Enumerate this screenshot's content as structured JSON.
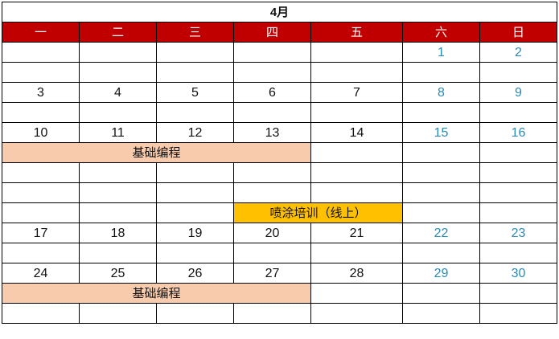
{
  "title": "4月",
  "weekdays": [
    "一",
    "二",
    "三",
    "四",
    "五",
    "六",
    "日"
  ],
  "colors": {
    "header": "#c00000",
    "weekend_text": "#2a8bb5",
    "event_basic": "#f8cbad",
    "event_spray": "#ffc000"
  },
  "rows": [
    {
      "cells": [
        "",
        "",
        "",
        "",
        "",
        "1",
        "2"
      ]
    },
    {
      "cells": [
        "",
        "",
        "",
        "",
        "",
        "",
        ""
      ]
    },
    {
      "cells": [
        "3",
        "4",
        "5",
        "6",
        "7",
        "8",
        "9"
      ]
    },
    {
      "cells": [
        "",
        "",
        "",
        "",
        "",
        "",
        ""
      ]
    },
    {
      "cells": [
        "10",
        "11",
        "12",
        "13",
        "14",
        "15",
        "16"
      ]
    },
    {
      "event": {
        "label": "基础编程",
        "start": 0,
        "span": 4,
        "style": "peach"
      }
    },
    {
      "cells": [
        "",
        "",
        "",
        "",
        "",
        "",
        ""
      ]
    },
    {
      "cells": [
        "",
        "",
        "",
        "",
        "",
        "",
        ""
      ]
    },
    {
      "event": {
        "label": "喷涂培训（线上）",
        "start": 3,
        "span": 2,
        "style": "orange"
      }
    },
    {
      "cells": [
        "17",
        "18",
        "19",
        "20",
        "21",
        "22",
        "23"
      ]
    },
    {
      "cells": [
        "",
        "",
        "",
        "",
        "",
        "",
        ""
      ]
    },
    {
      "cells": [
        "24",
        "25",
        "26",
        "27",
        "28",
        "29",
        "30"
      ]
    },
    {
      "event": {
        "label": "基础编程",
        "start": 0,
        "span": 4,
        "style": "peach"
      }
    },
    {
      "cells": [
        "",
        "",
        "",
        "",
        "",
        "",
        ""
      ]
    }
  ]
}
